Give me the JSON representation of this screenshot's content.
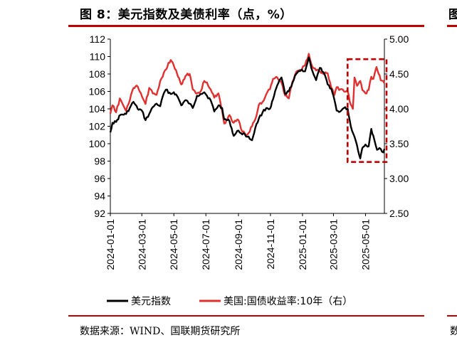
{
  "title": "图 8：美元指数及美债利率（点，%）",
  "source": "数据来源：WIND、国联期货研究所",
  "edge_fragments": {
    "top": "图",
    "bottom": "数"
  },
  "colors": {
    "accent": "#c00000",
    "usd_index": "#000000",
    "us10y": "#e03030",
    "highlight_box": "#c00000"
  },
  "chart_data": {
    "type": "line",
    "title": "",
    "xlabel": "",
    "ylabel_left": "",
    "ylabel_right": "",
    "x_range": [
      "2024-01-01",
      "2025-06-06"
    ],
    "x_ticks": [
      "2024-01-01",
      "2024-03-01",
      "2024-05-01",
      "2024-07-01",
      "2024-09-01",
      "2024-11-01",
      "2025-01-01",
      "2025-03-01",
      "2025-05-01"
    ],
    "y_left": {
      "range": [
        92,
        112
      ],
      "ticks": [
        "92",
        "94",
        "96",
        "98",
        "100",
        "102",
        "104",
        "106",
        "108",
        "110",
        "112"
      ]
    },
    "y_right": {
      "range": [
        2.5,
        5.0
      ],
      "ticks": [
        "2.50",
        "3.00",
        "3.50",
        "4.00",
        "4.50",
        "5.00"
      ]
    },
    "legend_position": "bottom",
    "grid": false,
    "series": [
      {
        "name": "美元指数",
        "axis": "left",
        "points": [
          [
            "2024-01-01",
            101.3
          ],
          [
            "2024-01-05",
            102.4
          ],
          [
            "2024-01-12",
            102.5
          ],
          [
            "2024-01-20",
            103.3
          ],
          [
            "2024-01-31",
            103.4
          ],
          [
            "2024-02-07",
            104.1
          ],
          [
            "2024-02-14",
            104.8
          ],
          [
            "2024-02-22",
            104.0
          ],
          [
            "2024-03-01",
            103.8
          ],
          [
            "2024-03-08",
            102.7
          ],
          [
            "2024-03-15",
            103.4
          ],
          [
            "2024-03-22",
            104.2
          ],
          [
            "2024-03-29",
            104.6
          ],
          [
            "2024-04-05",
            104.3
          ],
          [
            "2024-04-12",
            105.8
          ],
          [
            "2024-04-16",
            106.2
          ],
          [
            "2024-04-25",
            105.7
          ],
          [
            "2024-05-01",
            105.9
          ],
          [
            "2024-05-09",
            105.3
          ],
          [
            "2024-05-15",
            104.4
          ],
          [
            "2024-05-23",
            105.0
          ],
          [
            "2024-05-31",
            104.6
          ],
          [
            "2024-06-06",
            104.1
          ],
          [
            "2024-06-14",
            105.5
          ],
          [
            "2024-06-21",
            105.7
          ],
          [
            "2024-06-28",
            105.9
          ],
          [
            "2024-07-03",
            105.5
          ],
          [
            "2024-07-10",
            105.0
          ],
          [
            "2024-07-17",
            103.7
          ],
          [
            "2024-07-25",
            104.4
          ],
          [
            "2024-08-01",
            104.1
          ],
          [
            "2024-08-05",
            102.8
          ],
          [
            "2024-08-15",
            102.6
          ],
          [
            "2024-08-23",
            100.9
          ],
          [
            "2024-09-01",
            101.5
          ],
          [
            "2024-09-06",
            101.2
          ],
          [
            "2024-09-13",
            101.1
          ],
          [
            "2024-09-18",
            100.8
          ],
          [
            "2024-09-27",
            100.4
          ],
          [
            "2024-10-03",
            101.8
          ],
          [
            "2024-10-10",
            102.9
          ],
          [
            "2024-10-17",
            103.6
          ],
          [
            "2024-10-24",
            104.1
          ],
          [
            "2024-10-31",
            104.0
          ],
          [
            "2024-11-06",
            105.1
          ],
          [
            "2024-11-14",
            106.7
          ],
          [
            "2024-11-22",
            107.6
          ],
          [
            "2024-11-29",
            105.7
          ],
          [
            "2024-12-06",
            106.0
          ],
          [
            "2024-12-13",
            107.0
          ],
          [
            "2024-12-20",
            108.0
          ],
          [
            "2024-12-31",
            108.5
          ],
          [
            "2025-01-06",
            108.3
          ],
          [
            "2025-01-13",
            109.9
          ],
          [
            "2025-01-20",
            108.3
          ],
          [
            "2025-01-27",
            107.3
          ],
          [
            "2025-02-03",
            108.7
          ],
          [
            "2025-02-10",
            108.2
          ],
          [
            "2025-02-18",
            106.8
          ],
          [
            "2025-02-25",
            106.3
          ],
          [
            "2025-03-03",
            105.0
          ],
          [
            "2025-03-07",
            103.8
          ],
          [
            "2025-03-14",
            103.7
          ],
          [
            "2025-03-21",
            104.1
          ],
          [
            "2025-03-28",
            104.0
          ],
          [
            "2025-04-03",
            102.0
          ],
          [
            "2025-04-10",
            100.8
          ],
          [
            "2025-04-15",
            99.8
          ],
          [
            "2025-04-21",
            98.3
          ],
          [
            "2025-04-25",
            99.5
          ],
          [
            "2025-05-01",
            99.9
          ],
          [
            "2025-05-07",
            99.7
          ],
          [
            "2025-05-12",
            101.7
          ],
          [
            "2025-05-16",
            100.9
          ],
          [
            "2025-05-23",
            99.3
          ],
          [
            "2025-05-30",
            99.4
          ],
          [
            "2025-06-04",
            99.0
          ],
          [
            "2025-06-06",
            99.4
          ]
        ]
      },
      {
        "name": "美国:国债收益率:10年（右）",
        "axis": "right",
        "points": [
          [
            "2024-01-01",
            3.93
          ],
          [
            "2024-01-05",
            4.05
          ],
          [
            "2024-01-12",
            3.95
          ],
          [
            "2024-01-19",
            4.15
          ],
          [
            "2024-01-31",
            3.97
          ],
          [
            "2024-02-07",
            4.12
          ],
          [
            "2024-02-14",
            4.3
          ],
          [
            "2024-02-22",
            4.32
          ],
          [
            "2024-03-01",
            4.18
          ],
          [
            "2024-03-08",
            4.07
          ],
          [
            "2024-03-15",
            4.3
          ],
          [
            "2024-03-22",
            4.22
          ],
          [
            "2024-03-29",
            4.2
          ],
          [
            "2024-04-05",
            4.4
          ],
          [
            "2024-04-12",
            4.52
          ],
          [
            "2024-04-25",
            4.7
          ],
          [
            "2024-05-01",
            4.62
          ],
          [
            "2024-05-09",
            4.46
          ],
          [
            "2024-05-15",
            4.35
          ],
          [
            "2024-05-23",
            4.47
          ],
          [
            "2024-05-31",
            4.5
          ],
          [
            "2024-06-06",
            4.28
          ],
          [
            "2024-06-14",
            4.22
          ],
          [
            "2024-06-21",
            4.25
          ],
          [
            "2024-06-28",
            4.4
          ],
          [
            "2024-07-03",
            4.38
          ],
          [
            "2024-07-10",
            4.28
          ],
          [
            "2024-07-17",
            4.16
          ],
          [
            "2024-07-25",
            4.22
          ],
          [
            "2024-08-01",
            3.97
          ],
          [
            "2024-08-05",
            3.79
          ],
          [
            "2024-08-15",
            3.91
          ],
          [
            "2024-08-23",
            3.8
          ],
          [
            "2024-09-01",
            3.84
          ],
          [
            "2024-09-06",
            3.71
          ],
          [
            "2024-09-13",
            3.65
          ],
          [
            "2024-09-18",
            3.63
          ],
          [
            "2024-09-27",
            3.75
          ],
          [
            "2024-10-03",
            3.85
          ],
          [
            "2024-10-10",
            4.06
          ],
          [
            "2024-10-17",
            4.1
          ],
          [
            "2024-10-24",
            4.21
          ],
          [
            "2024-10-31",
            4.28
          ],
          [
            "2024-11-06",
            4.43
          ],
          [
            "2024-11-14",
            4.45
          ],
          [
            "2024-11-22",
            4.38
          ],
          [
            "2024-11-29",
            4.19
          ],
          [
            "2024-12-06",
            4.15
          ],
          [
            "2024-12-13",
            4.39
          ],
          [
            "2024-12-20",
            4.53
          ],
          [
            "2024-12-31",
            4.57
          ],
          [
            "2025-01-06",
            4.63
          ],
          [
            "2025-01-13",
            4.79
          ],
          [
            "2025-01-20",
            4.6
          ],
          [
            "2025-01-27",
            4.55
          ],
          [
            "2025-02-03",
            4.54
          ],
          [
            "2025-02-10",
            4.5
          ],
          [
            "2025-02-18",
            4.51
          ],
          [
            "2025-02-25",
            4.3
          ],
          [
            "2025-03-03",
            4.2
          ],
          [
            "2025-03-07",
            4.31
          ],
          [
            "2025-03-14",
            4.28
          ],
          [
            "2025-03-21",
            4.25
          ],
          [
            "2025-03-28",
            4.25
          ],
          [
            "2025-04-03",
            4.06
          ],
          [
            "2025-04-07",
            4.0
          ],
          [
            "2025-04-10",
            4.45
          ],
          [
            "2025-04-15",
            4.33
          ],
          [
            "2025-04-21",
            4.4
          ],
          [
            "2025-04-25",
            4.27
          ],
          [
            "2025-05-01",
            4.22
          ],
          [
            "2025-05-07",
            4.27
          ],
          [
            "2025-05-12",
            4.46
          ],
          [
            "2025-05-16",
            4.43
          ],
          [
            "2025-05-22",
            4.6
          ],
          [
            "2025-05-30",
            4.41
          ],
          [
            "2025-06-04",
            4.4
          ],
          [
            "2025-06-06",
            4.39
          ]
        ]
      }
    ],
    "annotations": [
      {
        "type": "dashed-box",
        "x_range": [
          "2025-04-01",
          "2025-06-06"
        ],
        "y_left_range": [
          97.9,
          109.7
        ]
      }
    ]
  }
}
